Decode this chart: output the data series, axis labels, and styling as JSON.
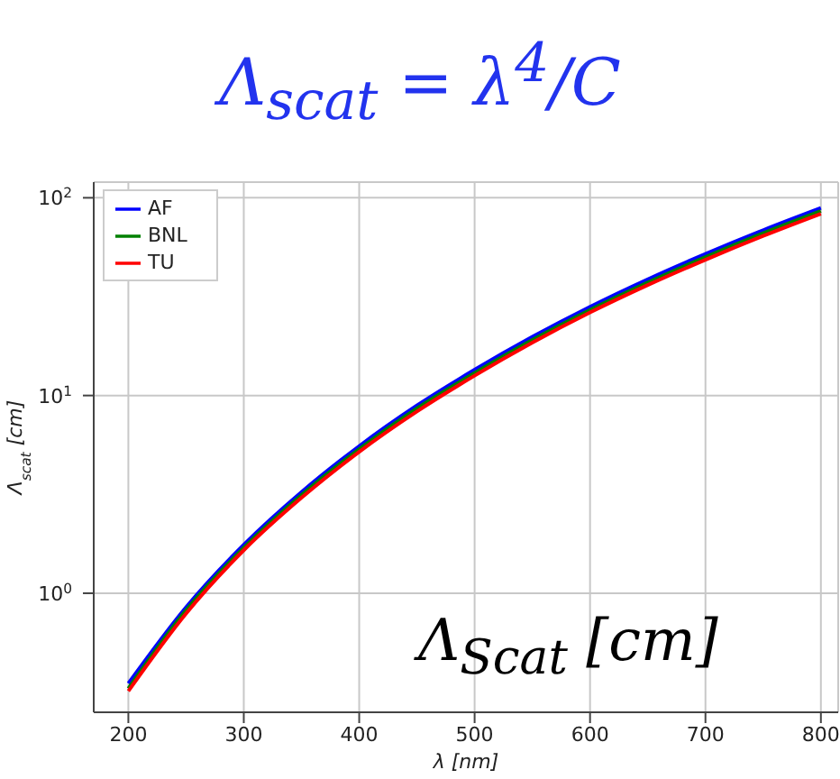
{
  "chart_data": {
    "type": "line",
    "title": "Λ$_{scat}$ = λ$^{4}$/C",
    "xlabel": "λ [nm]",
    "ylabel": "Λ$_{scat}$ [cm]",
    "annotations": [
      "Λ$_{Scat}$ [cm]"
    ],
    "x": [
      200,
      250,
      300,
      350,
      400,
      450,
      500,
      550,
      600,
      650,
      700,
      750,
      800
    ],
    "series": [
      {
        "name": "AF",
        "color": "#0000ff",
        "values": [
          0.35,
          0.85,
          1.76,
          3.25,
          5.55,
          8.9,
          13.5,
          19.8,
          28.1,
          38.7,
          52,
          68.6,
          88.8
        ]
      },
      {
        "name": "BNL",
        "color": "#008000",
        "values": [
          0.33,
          0.82,
          1.7,
          3.14,
          5.36,
          8.6,
          13.0,
          19.1,
          27.1,
          37.3,
          50.2,
          66.2,
          85.7
        ]
      },
      {
        "name": "TU",
        "color": "#ff0000",
        "values": [
          0.32,
          0.79,
          1.65,
          3.04,
          5.19,
          8.3,
          12.6,
          18.5,
          26.3,
          36.2,
          48.6,
          64.1,
          83
        ]
      }
    ],
    "xlim": [
      170,
      815
    ],
    "xticks": [
      200,
      300,
      400,
      500,
      600,
      700,
      800
    ],
    "ylim": [
      0.25,
      120
    ],
    "yticks": [
      {
        "value": 1,
        "label": "10$^{0}$"
      },
      {
        "value": 10,
        "label": "10$^{1}$"
      },
      {
        "value": 100,
        "label": "10$^{2}$"
      }
    ],
    "log": "y",
    "grid": true,
    "legend": "top left",
    "marker": "none",
    "line_style": "solid"
  }
}
